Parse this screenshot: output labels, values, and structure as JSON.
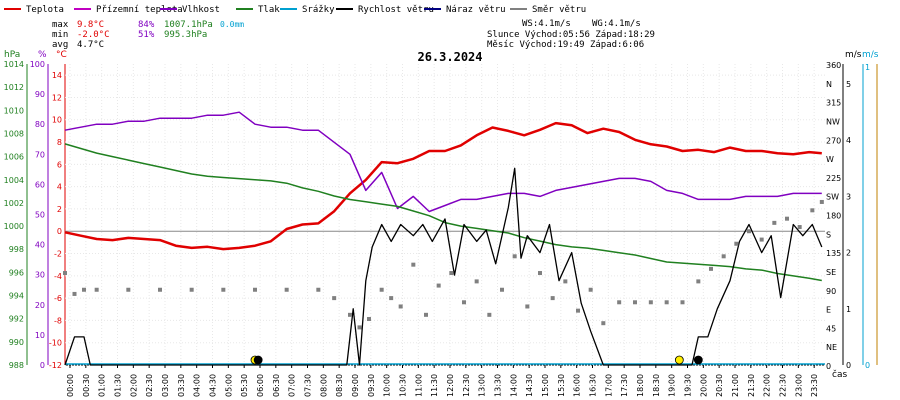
{
  "legend": [
    {
      "label": "Teplota",
      "color": "#e00000"
    },
    {
      "label": "Přízemní teplota",
      "color": "#c000c0"
    },
    {
      "label": "Vlhkost",
      "color": "#8000c0"
    },
    {
      "label": "Tlak",
      "color": "#208020"
    },
    {
      "label": "Srážky",
      "color": "#00a0d0"
    },
    {
      "label": "Rychlost větru",
      "color": "#000000"
    },
    {
      "label": "Náraz větru",
      "color": "#000080"
    },
    {
      "label": "Směr větru",
      "color": "#808080"
    }
  ],
  "stats": {
    "max_label": "max",
    "max_temp": "9.8°C",
    "max_hum": "84%",
    "max_press": "1007.1hPa",
    "max_rain": "0.0mm",
    "min_label": "min",
    "min_temp": "-2.0°C",
    "min_hum": "51%",
    "min_press": "995.3hPa",
    "avg_label": "avg",
    "avg_temp": "4.7°C"
  },
  "wind_info": {
    "ws": "WS:4.1m/s",
    "wg": "WG:4.1m/s",
    "sun": "Slunce Východ:05:56  Západ:18:29",
    "moon": "Měsíc  Východ:19:49  Západ:6:06"
  },
  "date_title": "26.3.2024",
  "axes": {
    "hpa_unit": "hPa",
    "pct_unit": "%",
    "c_unit": "°C",
    "ms_unit": "m/s",
    "ms2_unit": "m/s",
    "time_unit": "čas",
    "hpa_ticks": [
      "1014",
      "1012",
      "1010",
      "1008",
      "1006",
      "1004",
      "1002",
      "1000",
      "998",
      "996",
      "994",
      "992",
      "990",
      "988"
    ],
    "pct_ticks": [
      "100",
      "90",
      "80",
      "70",
      "60",
      "50",
      "40",
      "30",
      "20",
      "10",
      "0"
    ],
    "c_ticks": [
      "14",
      "12",
      "10",
      "8",
      "6",
      "4",
      "2",
      "0",
      "-2",
      "-4",
      "-6",
      "-8",
      "-10",
      "-12"
    ],
    "dir_ticks": [
      "360",
      "N",
      "315",
      "NW",
      "270",
      "W",
      "225",
      "SW",
      "180",
      "S",
      "135",
      "SE",
      "90",
      "E",
      "45",
      "NE",
      "0"
    ],
    "ms_ticks": [
      "5",
      "4",
      "3",
      "2",
      "1",
      "0"
    ],
    "ms2_ticks": [
      "1",
      "0"
    ],
    "time_ticks": [
      "00:00",
      "00:30",
      "01:00",
      "01:30",
      "02:00",
      "02:30",
      "03:00",
      "03:30",
      "04:00",
      "04:30",
      "05:00",
      "05:30",
      "06:00",
      "06:30",
      "07:00",
      "07:30",
      "08:00",
      "08:30",
      "09:00",
      "09:30",
      "10:00",
      "10:30",
      "11:00",
      "11:30",
      "12:00",
      "12:30",
      "13:00",
      "13:30",
      "14:00",
      "14:30",
      "15:00",
      "15:30",
      "16:00",
      "16:30",
      "17:00",
      "17:30",
      "18:00",
      "18:30",
      "19:00",
      "19:30",
      "20:00",
      "20:30",
      "21:00",
      "21:30",
      "22:00",
      "22:30",
      "23:00",
      "23:30"
    ]
  },
  "chart_data": {
    "type": "line",
    "x_unit": "hours",
    "series": [
      {
        "name": "Teplota",
        "color": "#e00000",
        "x": [
          0,
          0.5,
          1,
          1.5,
          2,
          2.5,
          3,
          3.5,
          4,
          4.5,
          5,
          5.5,
          6,
          6.5,
          7,
          7.5,
          8,
          8.5,
          9,
          9.5,
          10,
          10.5,
          11,
          11.5,
          12,
          12.5,
          13,
          13.5,
          14,
          14.5,
          15,
          15.5,
          16,
          16.5,
          17,
          17.5,
          18,
          18.5,
          19,
          19.5,
          20,
          20.5,
          21,
          21.5,
          22,
          22.5,
          23,
          23.5,
          23.9
        ],
        "values": [
          -0.1,
          -0.4,
          -0.7,
          -0.8,
          -0.6,
          -0.7,
          -0.8,
          -1.3,
          -1.5,
          -1.4,
          -1.6,
          -1.5,
          -1.3,
          -0.9,
          0.2,
          0.6,
          0.7,
          1.8,
          3.4,
          4.6,
          6.2,
          6.1,
          6.5,
          7.2,
          7.2,
          7.7,
          8.6,
          9.3,
          9.0,
          8.6,
          9.1,
          9.7,
          9.5,
          8.8,
          9.2,
          8.9,
          8.2,
          7.8,
          7.6,
          7.2,
          7.3,
          7.1,
          7.5,
          7.2,
          7.2,
          7.0,
          6.9,
          7.1,
          7.0
        ]
      },
      {
        "name": "Vlhkost",
        "color": "#8000c0",
        "x": [
          0,
          0.5,
          1,
          1.5,
          2,
          2.5,
          3,
          3.5,
          4,
          4.5,
          5,
          5.5,
          6,
          6.5,
          7,
          7.5,
          8,
          8.5,
          9,
          9.5,
          10,
          10.5,
          11,
          11.5,
          12,
          12.5,
          13,
          13.5,
          14,
          14.5,
          15,
          15.5,
          16,
          16.5,
          17,
          17.5,
          18,
          18.5,
          19,
          19.5,
          20,
          20.5,
          21,
          21.5,
          22,
          22.5,
          23,
          23.5,
          23.9
        ],
        "values": [
          78,
          79,
          80,
          80,
          81,
          81,
          82,
          82,
          82,
          83,
          83,
          84,
          80,
          79,
          79,
          78,
          78,
          74,
          70,
          58,
          64,
          52,
          56,
          51,
          53,
          55,
          55,
          56,
          57,
          57,
          56,
          58,
          59,
          60,
          61,
          62,
          62,
          61,
          58,
          57,
          55,
          55,
          55,
          56,
          56,
          56,
          57,
          57,
          57
        ]
      },
      {
        "name": "Tlak",
        "color": "#208020",
        "x": [
          0,
          0.5,
          1,
          1.5,
          2,
          2.5,
          3,
          3.5,
          4,
          4.5,
          5,
          5.5,
          6,
          6.5,
          7,
          7.5,
          8,
          8.5,
          9,
          9.5,
          10,
          10.5,
          11,
          11.5,
          12,
          12.5,
          13,
          13.5,
          14,
          14.5,
          15,
          15.5,
          16,
          16.5,
          17,
          17.5,
          18,
          18.5,
          19,
          19.5,
          20,
          20.5,
          21,
          21.5,
          22,
          22.5,
          23,
          23.5,
          23.9
        ],
        "values": [
          1007.1,
          1006.7,
          1006.3,
          1006.0,
          1005.7,
          1005.4,
          1005.1,
          1004.8,
          1004.5,
          1004.3,
          1004.2,
          1004.1,
          1004.0,
          1003.9,
          1003.7,
          1003.3,
          1003.0,
          1002.6,
          1002.3,
          1002.1,
          1001.9,
          1001.7,
          1001.3,
          1000.9,
          1000.3,
          1000.0,
          999.8,
          999.6,
          999.4,
          999.0,
          998.7,
          998.4,
          998.2,
          998.1,
          997.9,
          997.7,
          997.5,
          997.2,
          996.9,
          996.8,
          996.7,
          996.6,
          996.5,
          996.3,
          996.2,
          995.9,
          995.7,
          995.5,
          995.3
        ]
      },
      {
        "name": "Rychlost větru",
        "color": "#000000",
        "x": [
          0,
          0.3,
          0.6,
          0.8,
          1,
          2,
          3,
          4,
          5,
          6,
          7,
          8,
          8.9,
          9.1,
          9.3,
          9.5,
          9.7,
          10,
          10.3,
          10.6,
          11,
          11.3,
          11.6,
          12,
          12.3,
          12.6,
          13,
          13.3,
          13.6,
          14,
          14.2,
          14.4,
          14.6,
          15,
          15.3,
          15.6,
          16,
          16.3,
          16.6,
          17,
          17.5,
          18,
          18.5,
          19,
          19.5,
          19.8,
          20,
          20.3,
          20.6,
          21,
          21.3,
          21.6,
          22,
          22.3,
          22.6,
          23,
          23.3,
          23.6,
          23.9
        ],
        "values": [
          0,
          0.5,
          0.5,
          0,
          0,
          0,
          0,
          0,
          0,
          0,
          0,
          0,
          0,
          1.0,
          0,
          1.5,
          2.1,
          2.5,
          2.2,
          2.5,
          2.3,
          2.5,
          2.2,
          2.6,
          1.6,
          2.5,
          2.2,
          2.4,
          1.8,
          2.8,
          3.5,
          1.9,
          2.3,
          2.0,
          2.5,
          1.5,
          2.0,
          1.1,
          0.6,
          0,
          0,
          0,
          0,
          0,
          0,
          0,
          0.5,
          0.5,
          1.0,
          1.5,
          2.2,
          2.5,
          2.0,
          2.3,
          1.2,
          2.5,
          2.3,
          2.5,
          2.1
        ]
      },
      {
        "name": "Směr větru",
        "color": "#808080",
        "x": [
          0,
          0.3,
          0.6,
          1,
          2,
          3,
          4,
          5,
          6,
          7,
          8,
          8.5,
          9,
          9.3,
          9.6,
          10,
          10.3,
          10.6,
          11,
          11.4,
          11.8,
          12.2,
          12.6,
          13,
          13.4,
          13.8,
          14.2,
          14.6,
          15,
          15.4,
          15.8,
          16.2,
          16.6,
          17,
          17.5,
          18,
          18.5,
          19,
          19.5,
          20,
          20.4,
          20.8,
          21.2,
          21.6,
          22,
          22.4,
          22.8,
          23.2,
          23.6,
          23.9
        ],
        "values": [
          110,
          85,
          90,
          90,
          90,
          90,
          90,
          90,
          90,
          90,
          90,
          80,
          60,
          45,
          55,
          90,
          80,
          70,
          120,
          60,
          95,
          110,
          75,
          100,
          60,
          90,
          130,
          70,
          110,
          80,
          100,
          65,
          90,
          50,
          75,
          75,
          75,
          75,
          75,
          100,
          115,
          130,
          145,
          160,
          150,
          170,
          175,
          165,
          185,
          195
        ]
      }
    ],
    "ranges": {
      "temp": [
        -12,
        15
      ],
      "humidity": [
        0,
        100
      ],
      "pressure": [
        988,
        1014
      ],
      "wind_speed": [
        0,
        5
      ],
      "wind_dir": [
        0,
        360
      ]
    },
    "markers": [
      {
        "label": "sunrise",
        "x": 6.0
      },
      {
        "label": "moonset",
        "x": 6.1
      },
      {
        "label": "sunrise-2",
        "x": 19.4
      },
      {
        "label": "moonrise",
        "x": 20.0
      }
    ]
  }
}
